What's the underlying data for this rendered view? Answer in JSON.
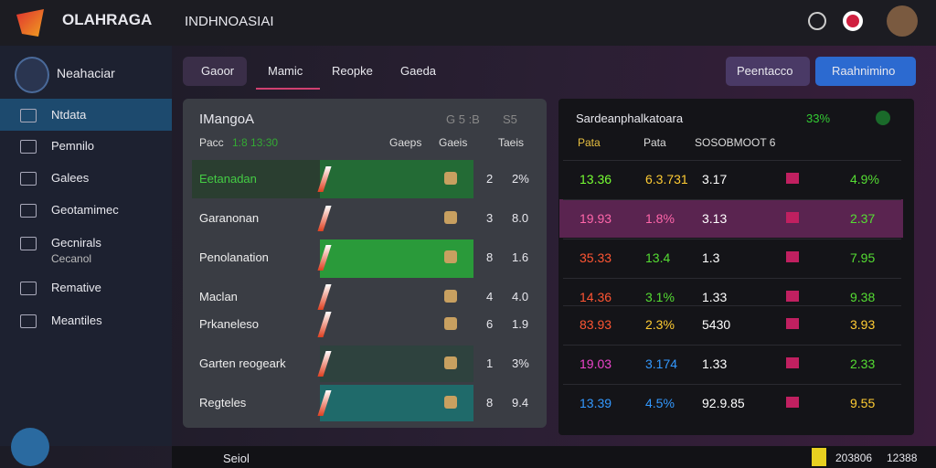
{
  "header": {
    "brand": "OLAHRAGA",
    "tagline": "INDHNOASIAI"
  },
  "sidebar": {
    "profile": "Neahaciar",
    "items": [
      "Ntdata",
      "Pemnilo",
      "Galees",
      "Geotamimec",
      "Gecnirals",
      "Cecanol",
      "Remative",
      "Meantiles"
    ]
  },
  "tabs": [
    "Gaoor",
    "Mamic",
    "Reopke",
    "Gaeda"
  ],
  "buttons": [
    "Peentacco",
    "Raahnimino"
  ],
  "left_panel": {
    "title": "IMangoA",
    "top_right": [
      "G 5 :B",
      "S5"
    ],
    "header": [
      "Pacc",
      "1:8 13:30",
      "Gaeps",
      "Gaeis",
      "Taeis"
    ],
    "rows": [
      [
        "Eetanadan",
        "2",
        "2%"
      ],
      [
        "Garanonan",
        "3",
        "8.0"
      ],
      [
        "Penolanation",
        "8",
        "1.6"
      ],
      [
        "Maclan",
        "4",
        "4.0"
      ],
      [
        "Prkaneleso",
        "6",
        "1.9"
      ],
      [
        "Garten reogeark",
        "1",
        "3%"
      ],
      [
        "Regteles",
        "8",
        "9.4"
      ]
    ]
  },
  "right_panel": {
    "title": "Sardeanphalkatoara",
    "badge": "33%",
    "header": [
      "Pata",
      "Pata",
      "SOSOBMOOT 6"
    ],
    "rows": [
      [
        "13.36",
        "6.3.731",
        "3.17",
        "4.9%"
      ],
      [
        "19.93",
        "1.8%",
        "3.13",
        "2.37"
      ],
      [
        "35.33",
        "13.4",
        "1.3",
        "7.95"
      ],
      [
        "14.36",
        "3.1%",
        "1.33",
        "9.38"
      ],
      [
        "83.93",
        "2.3%",
        "5430",
        "3.93"
      ],
      [
        "19.03",
        "3.174",
        "1.33",
        "2.33"
      ],
      [
        "13.39",
        "4.5%",
        "92.9.85",
        "9.55"
      ]
    ]
  },
  "footer": {
    "label": "Seiol",
    "code": "203806",
    "time": "12388"
  }
}
